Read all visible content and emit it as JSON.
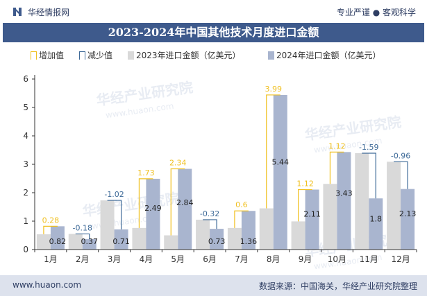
{
  "header": {
    "brand": "华经情报网",
    "tagline": "专业严谨 ● 客观科学",
    "title": "2023-2024年中国其他技术月度进口金额"
  },
  "footer": {
    "site": "www.huaon.com",
    "source": "数据来源：中国海关，华经产业研究院整理"
  },
  "watermark": "华经产业研究院",
  "watermark_url": "www.huaon.com",
  "colors": {
    "increase": "#f0c020",
    "decrease": "#3e6a98",
    "y2023": "#d9d9d9",
    "y2024": "#a9b5cf",
    "title_bg": "#3e5a8c"
  },
  "chart_data": {
    "type": "bar",
    "categories": [
      "1月",
      "2月",
      "3月",
      "4月",
      "5月",
      "6月",
      "7月",
      "8月",
      "9月",
      "10月",
      "11月",
      "12月"
    ],
    "series": [
      {
        "name": "2023年进口金额（亿美元）",
        "values": [
          0.54,
          0.55,
          1.73,
          0.76,
          0.5,
          1.05,
          0.76,
          1.45,
          0.99,
          2.31,
          3.39,
          3.09
        ]
      },
      {
        "name": "2024年进口金额（亿美元）",
        "values": [
          0.82,
          0.37,
          0.71,
          2.49,
          2.84,
          0.73,
          1.36,
          5.44,
          2.11,
          3.43,
          1.8,
          2.13
        ]
      }
    ],
    "changes": [
      0.28,
      -0.18,
      -1.02,
      1.73,
      2.34,
      -0.32,
      0.6,
      3.99,
      1.12,
      1.12,
      -1.59,
      -0.96
    ],
    "change_legend": {
      "increase": "增加值",
      "decrease": "减少值"
    },
    "ylim": [
      0,
      6
    ],
    "yticks": [
      0,
      1,
      2,
      3,
      4,
      5,
      6
    ],
    "xlabel": "",
    "ylabel": "",
    "grid": false,
    "legend_position": "top"
  }
}
